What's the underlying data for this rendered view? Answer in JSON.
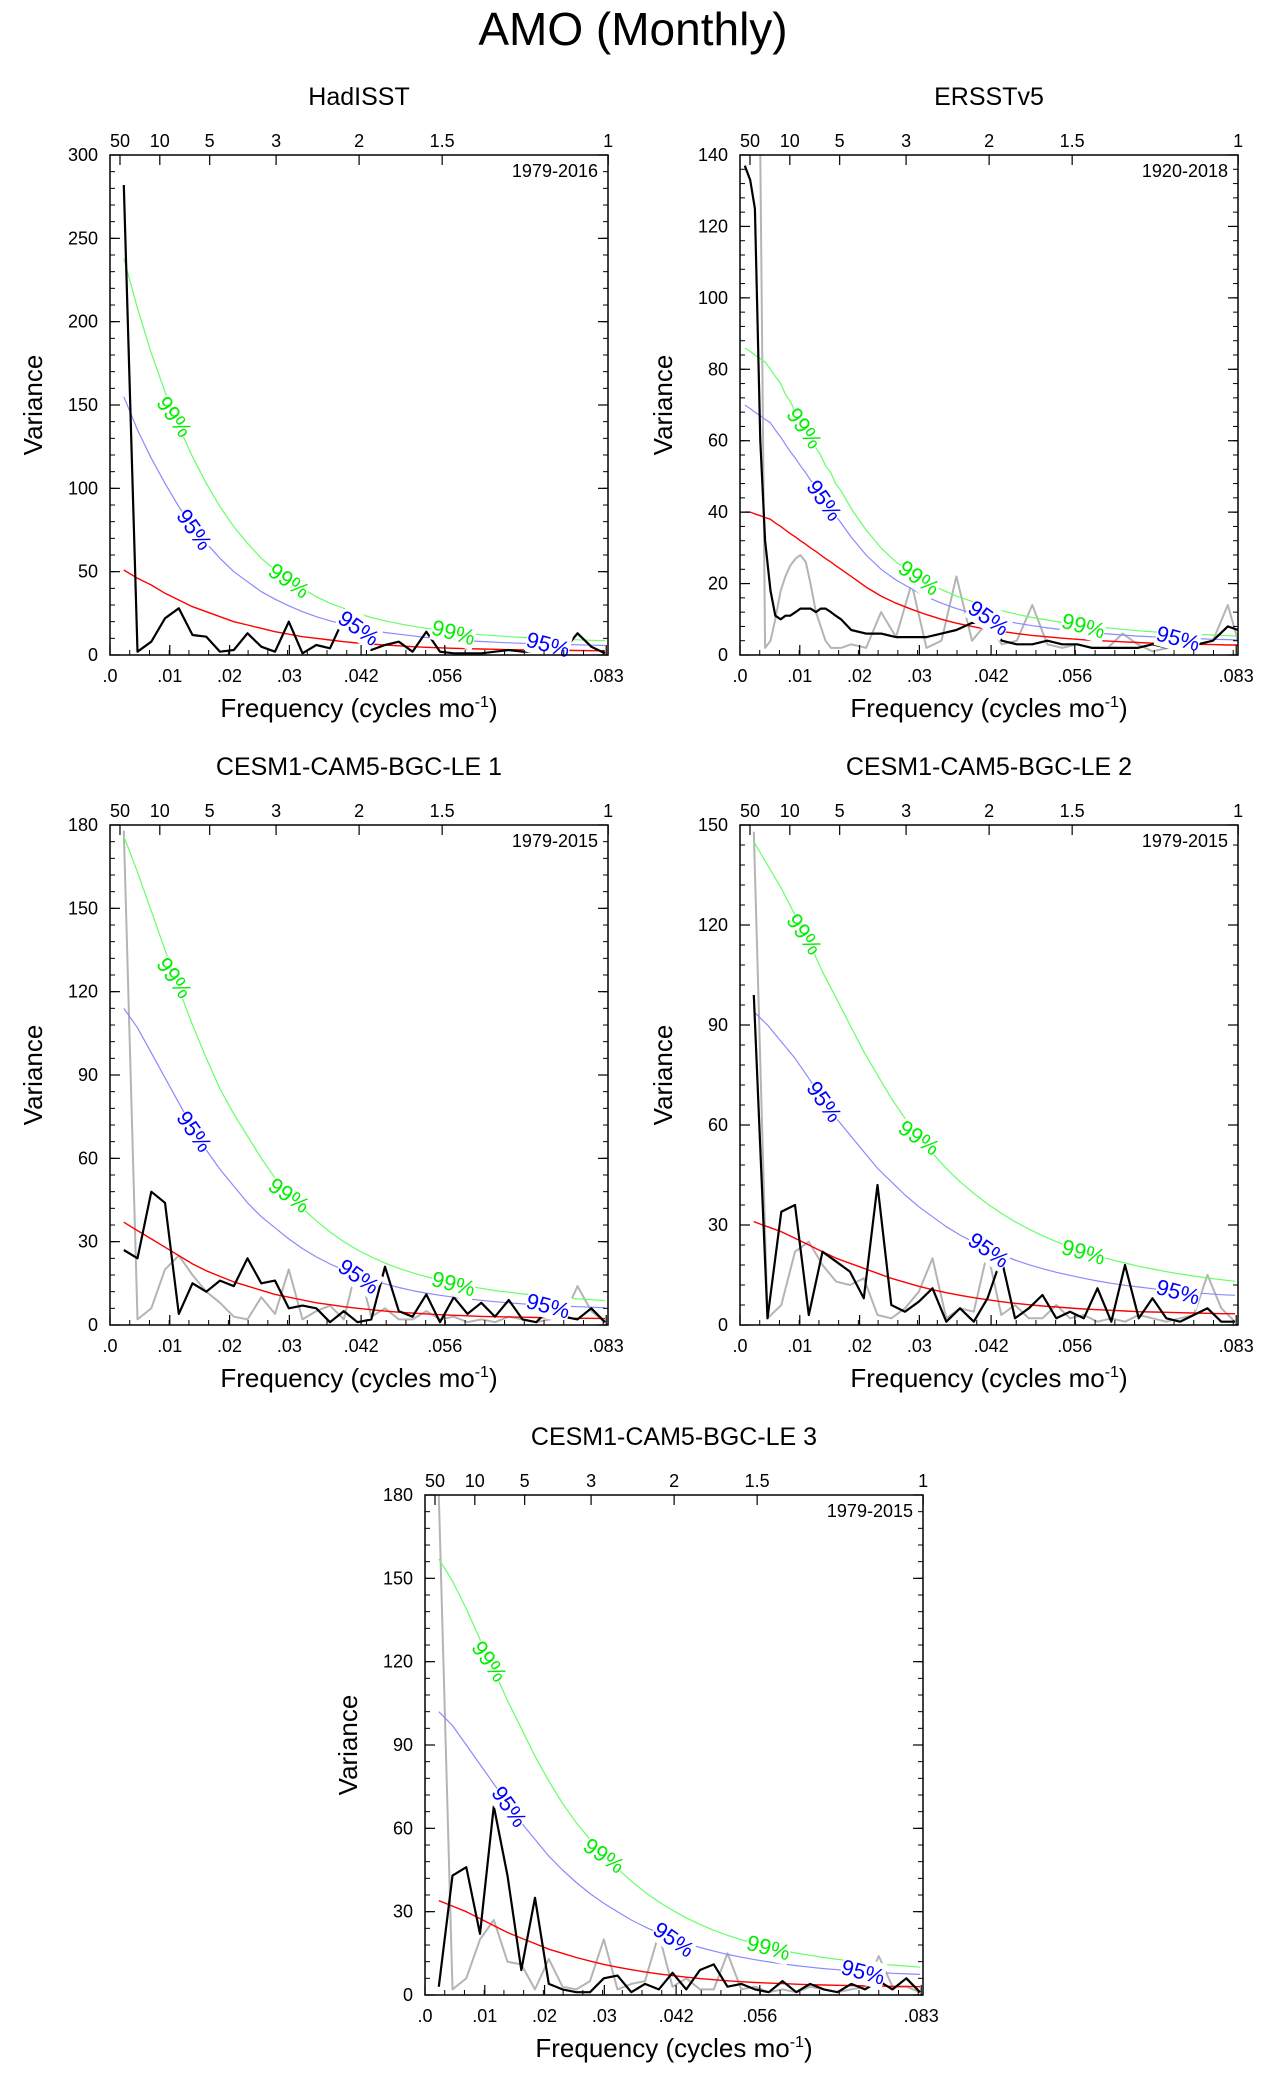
{
  "figure": {
    "title": "AMO (Monthly)"
  },
  "colors": {
    "obs": "#000000",
    "ref": "#b4b4b4",
    "red_noise": "#ff0000",
    "conf95": "#0000ff",
    "conf95_line": "#8a8aff",
    "conf99": "#00ee00",
    "conf99_line": "#66ff66"
  },
  "axis_labels": {
    "x": "Frequency (cycles mo",
    "x_sup": "-1",
    "x_close": ")",
    "y": "Variance"
  },
  "x_ticks": {
    "values": [
      0,
      0.01,
      0.02,
      0.03,
      0.042,
      0.056,
      0.083
    ],
    "labels": [
      ".0",
      ".01",
      ".02",
      ".03",
      ".042",
      ".056",
      ".083"
    ]
  },
  "period_ticks": {
    "freqs": [
      0.00167,
      0.00833,
      0.01667,
      0.02778,
      0.04167,
      0.05556,
      0.08333
    ],
    "labels": [
      "50",
      "10",
      "5",
      "3",
      "2",
      "1.5",
      "1"
    ]
  },
  "chart_data": [
    {
      "type": "line",
      "title": "HadISST",
      "period": "1979-2016",
      "xlim": [
        0,
        0.0833
      ],
      "ylim": [
        0,
        300
      ],
      "yticks": [
        0,
        50,
        100,
        150,
        200,
        250,
        300
      ],
      "x": [
        0.0023,
        0.0046,
        0.0069,
        0.0092,
        0.0115,
        0.0138,
        0.0161,
        0.0184,
        0.0207,
        0.023,
        0.0253,
        0.0276,
        0.0299,
        0.0322,
        0.0345,
        0.0368,
        0.0391,
        0.0414,
        0.0437,
        0.046,
        0.0483,
        0.0506,
        0.0529,
        0.0552,
        0.0575,
        0.0598,
        0.0621,
        0.0644,
        0.0667,
        0.069,
        0.0713,
        0.0736,
        0.0759,
        0.0782,
        0.0805,
        0.0828
      ],
      "observed": [
        282,
        2,
        8,
        22,
        28,
        12,
        11,
        2,
        3,
        13,
        5,
        2,
        20,
        1,
        6,
        4,
        22,
        10,
        3,
        6,
        8,
        2,
        14,
        2,
        1,
        1,
        1,
        2,
        3,
        2,
        2,
        4,
        3,
        13,
        5,
        1
      ],
      "red_noise": [
        51,
        46,
        42,
        37,
        33,
        29,
        26,
        23,
        20,
        18,
        16,
        14,
        12.5,
        11,
        10,
        9,
        8,
        7.2,
        6.6,
        6,
        5.5,
        5,
        4.6,
        4.3,
        4,
        3.8,
        3.6,
        3.4,
        3.2,
        3.1,
        3,
        2.9,
        2.8,
        2.7,
        2.6,
        2.5
      ],
      "conf95": [
        155,
        135,
        118,
        103,
        89,
        77,
        67,
        58,
        50,
        44,
        38,
        33.5,
        29.5,
        26,
        23,
        20.5,
        18.5,
        16.5,
        15,
        13.5,
        12.5,
        11.5,
        10.5,
        9.8,
        9.2,
        8.6,
        8.1,
        7.7,
        7.3,
        7,
        6.7,
        6.5,
        6.3,
        6.1,
        5.9,
        5.7
      ],
      "conf99": [
        238,
        208,
        181,
        158,
        137,
        119,
        103,
        89,
        77,
        67,
        58,
        51,
        45,
        40,
        35,
        31,
        28,
        25,
        22.5,
        20.5,
        18.8,
        17.3,
        16,
        14.8,
        13.8,
        12.9,
        12.2,
        11.6,
        11,
        10.5,
        10.1,
        9.7,
        9.4,
        9.1,
        8.8,
        8.6
      ],
      "labels": [
        "99%",
        "95%",
        "99%",
        "95%",
        "99%",
        "95%"
      ]
    },
    {
      "type": "line",
      "title": "ERSSTv5",
      "period": "1920-2018",
      "xlim": [
        0,
        0.0833
      ],
      "ylim": [
        0,
        140
      ],
      "yticks": [
        0,
        20,
        40,
        60,
        80,
        100,
        120,
        140
      ],
      "x": [
        0.0008,
        0.0017,
        0.0025,
        0.0034,
        0.0042,
        0.0051,
        0.0059,
        0.0068,
        0.0076,
        0.0084,
        0.0093,
        0.0101,
        0.011,
        0.0118,
        0.0127,
        0.0135,
        0.0143,
        0.0152,
        0.016,
        0.0169,
        0.0186,
        0.0211,
        0.0236,
        0.0261,
        0.0287,
        0.0312,
        0.0337,
        0.0362,
        0.0388,
        0.0413,
        0.0438,
        0.0463,
        0.0489,
        0.0514,
        0.0539,
        0.0564,
        0.0589,
        0.0615,
        0.064,
        0.0665,
        0.069,
        0.0716,
        0.0741,
        0.0766,
        0.0791,
        0.0816,
        0.0833
      ],
      "observed": [
        137,
        133,
        125,
        60,
        32,
        18,
        11,
        10,
        11,
        11,
        12,
        13,
        13,
        13,
        12,
        13,
        13,
        12,
        11,
        10,
        7,
        6,
        6,
        5,
        5,
        5,
        6,
        7,
        9,
        9,
        4,
        3,
        3,
        4,
        3,
        3,
        2,
        2,
        2,
        2,
        3,
        2,
        2,
        3,
        4,
        8,
        7
      ],
      "reference": [
        null,
        null,
        null,
        140,
        2,
        4,
        10,
        18,
        22,
        25,
        27,
        28,
        26,
        20,
        12,
        8,
        4,
        2,
        2,
        2,
        3,
        2,
        12,
        5,
        20,
        2,
        4,
        22,
        4,
        9,
        3,
        4,
        14,
        3,
        2,
        3,
        2,
        2,
        6,
        3,
        1,
        2,
        6,
        3,
        4,
        14,
        4
      ],
      "red_noise": [
        40,
        40,
        39.5,
        39,
        38.5,
        38,
        37,
        36,
        35,
        34,
        33,
        32,
        31,
        30,
        29,
        28,
        27,
        26,
        25,
        24,
        22,
        19,
        16.5,
        14.5,
        12.8,
        11.3,
        10,
        8.9,
        8,
        7.2,
        6.6,
        6,
        5.5,
        5.1,
        4.7,
        4.4,
        4.1,
        3.9,
        3.7,
        3.5,
        3.3,
        3.2,
        3.1,
        3,
        2.9,
        2.8,
        2.8
      ],
      "conf95": [
        70,
        69,
        68,
        67,
        66,
        65,
        63,
        61,
        59,
        57,
        55,
        53,
        51,
        49,
        47,
        45,
        43,
        41,
        39,
        37,
        33,
        28,
        24,
        21,
        18.5,
        16.3,
        14.5,
        13,
        11.7,
        10.6,
        9.7,
        8.9,
        8.2,
        7.6,
        7.1,
        6.6,
        6.2,
        5.9,
        5.6,
        5.3,
        5.1,
        4.9,
        4.7,
        4.6,
        4.4,
        4.3,
        4.2
      ],
      "conf99": [
        86,
        85,
        84,
        83,
        82,
        80,
        78,
        76,
        73,
        71,
        68,
        66,
        63,
        61,
        58,
        56,
        53,
        51,
        48,
        46,
        41,
        35,
        30,
        26,
        23,
        20.5,
        18.3,
        16.5,
        15,
        13.6,
        12.4,
        11.4,
        10.5,
        9.8,
        9.1,
        8.5,
        8,
        7.6,
        7.2,
        6.8,
        6.5,
        6.2,
        6,
        5.8,
        5.6,
        5.4,
        5.3
      ],
      "labels": [
        "99%",
        "95%",
        "99%",
        "95%",
        "99%",
        "95%"
      ]
    },
    {
      "type": "line",
      "title": "CESM1-CAM5-BGC-LE 1",
      "period": "1979-2015",
      "xlim": [
        0,
        0.0833
      ],
      "ylim": [
        0,
        180
      ],
      "yticks": [
        0,
        30,
        60,
        90,
        120,
        150,
        180
      ],
      "x": [
        0.0023,
        0.0046,
        0.0069,
        0.0092,
        0.0115,
        0.0138,
        0.0161,
        0.0184,
        0.0207,
        0.023,
        0.0253,
        0.0276,
        0.0299,
        0.0322,
        0.0345,
        0.0368,
        0.0391,
        0.0414,
        0.0437,
        0.046,
        0.0483,
        0.0506,
        0.0529,
        0.0552,
        0.0575,
        0.0598,
        0.0621,
        0.0644,
        0.0667,
        0.069,
        0.0713,
        0.0736,
        0.0759,
        0.0782,
        0.0805,
        0.0828
      ],
      "observed": [
        27,
        24,
        48,
        44,
        4,
        15,
        12,
        16,
        14,
        24,
        15,
        16,
        6,
        7,
        6,
        1,
        5,
        1,
        2,
        21,
        5,
        3,
        11,
        1,
        10,
        4,
        8,
        3,
        9,
        2,
        1,
        6,
        3,
        2,
        6,
        1
      ],
      "reference": [
        178,
        2,
        6,
        20,
        25,
        18,
        12,
        8,
        3,
        2,
        10,
        4,
        20,
        2,
        5,
        7,
        2,
        22,
        3,
        6,
        2,
        2,
        5,
        2,
        3,
        1,
        2,
        1,
        3,
        2,
        1,
        2,
        3,
        14,
        5,
        1
      ],
      "red_noise": [
        37,
        34,
        31,
        28,
        25,
        22,
        19.5,
        17.5,
        15.5,
        14,
        12.5,
        11,
        10,
        9,
        8,
        7.3,
        6.6,
        6,
        5.5,
        5,
        4.6,
        4.3,
        4,
        3.7,
        3.5,
        3.3,
        3.1,
        3,
        2.9,
        2.8,
        2.7,
        2.6,
        2.5,
        2.4,
        2.4,
        2.3
      ],
      "conf95": [
        114,
        107,
        98,
        89,
        80,
        71,
        63,
        56,
        50,
        44,
        39,
        35,
        31,
        27.5,
        24.5,
        22,
        19.8,
        17.8,
        16.2,
        14.8,
        13.5,
        12.4,
        11.5,
        10.7,
        10,
        9.4,
        8.9,
        8.4,
        8,
        7.6,
        7.3,
        7,
        6.8,
        6.6,
        6.4,
        6.2
      ],
      "conf99": [
        176,
        163,
        149,
        135,
        121,
        108,
        96,
        85,
        76,
        68,
        60,
        53,
        47,
        42,
        37.5,
        33.5,
        30,
        27,
        24.5,
        22.3,
        20.4,
        18.8,
        17.4,
        16.1,
        15,
        14,
        13.2,
        12.4,
        11.8,
        11.2,
        10.7,
        10.2,
        9.8,
        9.4,
        9.1,
        8.8
      ],
      "labels": [
        "99%",
        "95%",
        "99%",
        "95%",
        "99%",
        "95%"
      ]
    },
    {
      "type": "line",
      "title": "CESM1-CAM5-BGC-LE 2",
      "period": "1979-2015",
      "xlim": [
        0,
        0.0833
      ],
      "ylim": [
        0,
        150
      ],
      "yticks": [
        0,
        30,
        60,
        90,
        120,
        150
      ],
      "x": [
        0.0023,
        0.0046,
        0.0069,
        0.0092,
        0.0115,
        0.0138,
        0.0161,
        0.0184,
        0.0207,
        0.023,
        0.0253,
        0.0276,
        0.0299,
        0.0322,
        0.0345,
        0.0368,
        0.0391,
        0.0414,
        0.0437,
        0.046,
        0.0483,
        0.0506,
        0.0529,
        0.0552,
        0.0575,
        0.0598,
        0.0621,
        0.0644,
        0.0667,
        0.069,
        0.0713,
        0.0736,
        0.0759,
        0.0782,
        0.0805,
        0.0828
      ],
      "observed": [
        99,
        2,
        34,
        36,
        3,
        22,
        19,
        16,
        8,
        42,
        6,
        4,
        7,
        11,
        1,
        5,
        1,
        8,
        20,
        2,
        5,
        9,
        2,
        4,
        2,
        11,
        1,
        18,
        2,
        8,
        2,
        1,
        3,
        5,
        1,
        1
      ],
      "reference": [
        148,
        2,
        6,
        22,
        25,
        18,
        13,
        12,
        14,
        3,
        2,
        5,
        10,
        20,
        2,
        5,
        4,
        22,
        3,
        6,
        2,
        2,
        6,
        2,
        3,
        1,
        2,
        1,
        3,
        2,
        1,
        2,
        3,
        15,
        5,
        1
      ],
      "red_noise": [
        31,
        29.5,
        28,
        26,
        24,
        22,
        20,
        18.5,
        17,
        15.5,
        14,
        12.8,
        11.6,
        10.6,
        9.7,
        8.9,
        8.2,
        7.6,
        7,
        6.5,
        6.1,
        5.7,
        5.4,
        5.1,
        4.8,
        4.6,
        4.4,
        4.2,
        4,
        3.9,
        3.8,
        3.7,
        3.6,
        3.5,
        3.4,
        3.4
      ],
      "conf95": [
        94,
        90,
        85,
        80,
        74,
        68,
        62,
        57,
        52,
        47,
        43,
        39,
        35.5,
        32.5,
        29.5,
        27,
        24.8,
        22.8,
        21,
        19.5,
        18.1,
        16.9,
        15.8,
        14.9,
        14,
        13.2,
        12.5,
        11.9,
        11.4,
        10.9,
        10.4,
        10,
        9.7,
        9.4,
        9.1,
        8.9
      ],
      "conf99": [
        145,
        138,
        131,
        123,
        115,
        106,
        98,
        90,
        82,
        75,
        68,
        62,
        56.5,
        51.5,
        47,
        43,
        39.5,
        36.3,
        33.5,
        31,
        28.8,
        26.8,
        25,
        23.4,
        22,
        20.7,
        19.6,
        18.6,
        17.6,
        16.8,
        16,
        15.3,
        14.7,
        14.1,
        13.6,
        13.1
      ],
      "labels": [
        "99%",
        "95%",
        "99%",
        "95%",
        "99%",
        "95%"
      ]
    },
    {
      "type": "line",
      "title": "CESM1-CAM5-BGC-LE 3",
      "period": "1979-2015",
      "xlim": [
        0,
        0.0833
      ],
      "ylim": [
        0,
        180
      ],
      "yticks": [
        0,
        30,
        60,
        90,
        120,
        150,
        180
      ],
      "x": [
        0.0023,
        0.0046,
        0.0069,
        0.0092,
        0.0115,
        0.0138,
        0.0161,
        0.0184,
        0.0207,
        0.023,
        0.0253,
        0.0276,
        0.0299,
        0.0322,
        0.0345,
        0.0368,
        0.0391,
        0.0414,
        0.0437,
        0.046,
        0.0483,
        0.0506,
        0.0529,
        0.0552,
        0.0575,
        0.0598,
        0.0621,
        0.0644,
        0.0667,
        0.069,
        0.0713,
        0.0736,
        0.0759,
        0.0782,
        0.0805,
        0.0828
      ],
      "observed": [
        3,
        43,
        46,
        22,
        68,
        43,
        9,
        35,
        4,
        2,
        1,
        1,
        6,
        7,
        1,
        4,
        2,
        8,
        2,
        9,
        11,
        3,
        4,
        2,
        1,
        5,
        1,
        4,
        2,
        1,
        4,
        2,
        5,
        2,
        6,
        1
      ],
      "reference": [
        180,
        2,
        6,
        20,
        27,
        12,
        11,
        2,
        13,
        3,
        2,
        5,
        20,
        2,
        4,
        5,
        22,
        3,
        6,
        2,
        2,
        15,
        2,
        3,
        1,
        2,
        1,
        3,
        2,
        1,
        2,
        3,
        14,
        3,
        3,
        1
      ],
      "red_noise": [
        34,
        32,
        30,
        27.5,
        25,
        22.5,
        20.5,
        18.5,
        16.5,
        15,
        13.5,
        12.2,
        11,
        10,
        9.1,
        8.3,
        7.6,
        7,
        6.4,
        5.9,
        5.5,
        5.1,
        4.8,
        4.5,
        4.3,
        4.1,
        3.9,
        3.7,
        3.6,
        3.5,
        3.4,
        3.3,
        3.2,
        3.1,
        3.1,
        3
      ],
      "conf95": [
        102,
        97,
        90,
        83,
        76,
        69,
        62,
        56,
        50,
        45,
        40.5,
        36.5,
        33,
        30,
        27,
        24.5,
        22.3,
        20.3,
        18.6,
        17.1,
        15.8,
        14.6,
        13.6,
        12.7,
        11.9,
        11.2,
        10.6,
        10,
        9.5,
        9.1,
        8.7,
        8.4,
        8.1,
        7.8,
        7.6,
        7.4
      ],
      "conf99": [
        157,
        149,
        139,
        128,
        117,
        106,
        96,
        86,
        77,
        69,
        62,
        56,
        50.5,
        45.5,
        41,
        37,
        33.5,
        30.5,
        27.8,
        25.4,
        23.3,
        21.5,
        19.9,
        18.5,
        17.2,
        16.1,
        15.1,
        14.3,
        13.5,
        12.8,
        12.2,
        11.7,
        11.2,
        10.8,
        10.4,
        10
      ],
      "labels": [
        "99%",
        "95%",
        "99%",
        "95%",
        "99%",
        "95%"
      ]
    }
  ]
}
